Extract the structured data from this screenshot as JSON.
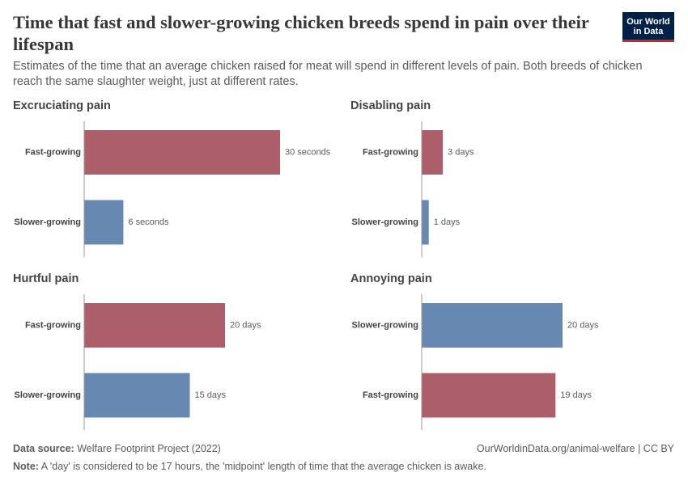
{
  "title": "Time that fast and slower-growing chicken breeds spend in pain over their lifespan",
  "subtitle": "Estimates of the time that an average chicken raised for meat will spend in different levels of pain. Both breeds of chicken reach the same slaughter weight, just at different rates.",
  "logo": [
    "Our World",
    "in Data"
  ],
  "footer": {
    "source_label": "Data source:",
    "source": "Welfare Footprint Project (2022)",
    "url": "OurWorldinData.org/animal-welfare | CC BY",
    "note_label": "Note:",
    "note": "A 'day' is considered to be 17 hours, the 'midpoint' length of time that the average chicken is awake."
  },
  "chart_data": [
    {
      "type": "bar",
      "orientation": "horizontal",
      "title": "Excruciating pain",
      "categories": [
        "Fast-growing",
        "Slower-growing"
      ],
      "values": [
        30,
        6
      ],
      "value_labels": [
        "30 seconds",
        "6 seconds"
      ],
      "colors": [
        "#ac5f6a",
        "#6788b1"
      ]
    },
    {
      "type": "bar",
      "orientation": "horizontal",
      "title": "Disabling pain",
      "categories": [
        "Fast-growing",
        "Slower-growing"
      ],
      "values": [
        3,
        1
      ],
      "value_labels": [
        "3 days",
        "1 days"
      ],
      "colors": [
        "#ac5f6a",
        "#6788b1"
      ]
    },
    {
      "type": "bar",
      "orientation": "horizontal",
      "title": "Hurtful pain",
      "categories": [
        "Fast-growing",
        "Slower-growing"
      ],
      "values": [
        20,
        15
      ],
      "value_labels": [
        "20 days",
        "15 days"
      ],
      "colors": [
        "#ac5f6a",
        "#6788b1"
      ]
    },
    {
      "type": "bar",
      "orientation": "horizontal",
      "title": "Annoying pain",
      "categories": [
        "Slower-growing",
        "Fast-growing"
      ],
      "values": [
        20,
        19
      ],
      "value_labels": [
        "20 days",
        "19 days"
      ],
      "colors": [
        "#6788b1",
        "#ac5f6a"
      ]
    }
  ]
}
